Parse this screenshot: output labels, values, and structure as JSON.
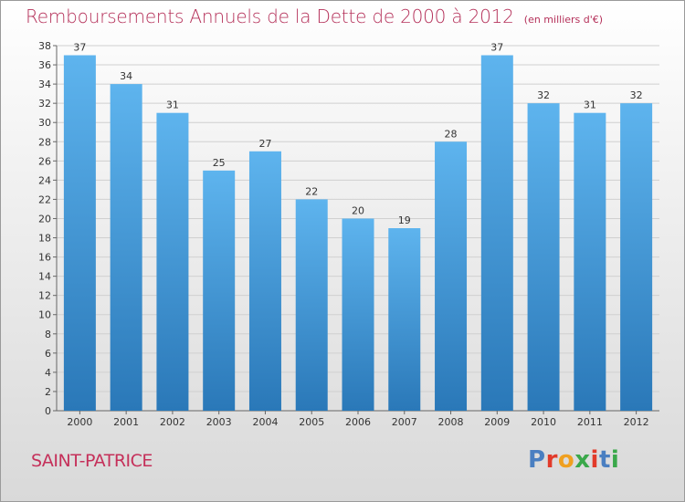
{
  "title": "Remboursements Annuels de la Dette de 2000 à 2012",
  "unit_note": "(en milliers d'€)",
  "place": "SAINT-PATRICE",
  "logo": {
    "text": "Proxiti",
    "colors": [
      "#4a7fc1",
      "#e23a2a",
      "#f0a020",
      "#3aa84a",
      "#e23a2a",
      "#4a7fc1",
      "#3aa84a"
    ]
  },
  "colors": {
    "title": "#b5315a",
    "place": "#c5305a",
    "bar_top": "#5eb4ee",
    "bar_bottom": "#2a78b8",
    "grid": "#d0d0d0"
  },
  "chart_data": {
    "type": "bar",
    "title": "Remboursements Annuels de la Dette de 2000 à 2012",
    "subtitle": "(en milliers d'€)",
    "categories": [
      "2000",
      "2001",
      "2002",
      "2003",
      "2004",
      "2005",
      "2006",
      "2007",
      "2008",
      "2009",
      "2010",
      "2011",
      "2012"
    ],
    "values": [
      37,
      34,
      31,
      25,
      27,
      22,
      20,
      19,
      28,
      37,
      32,
      31,
      32
    ],
    "ylim": [
      0,
      38
    ],
    "ytick_step": 2,
    "grid": true
  }
}
